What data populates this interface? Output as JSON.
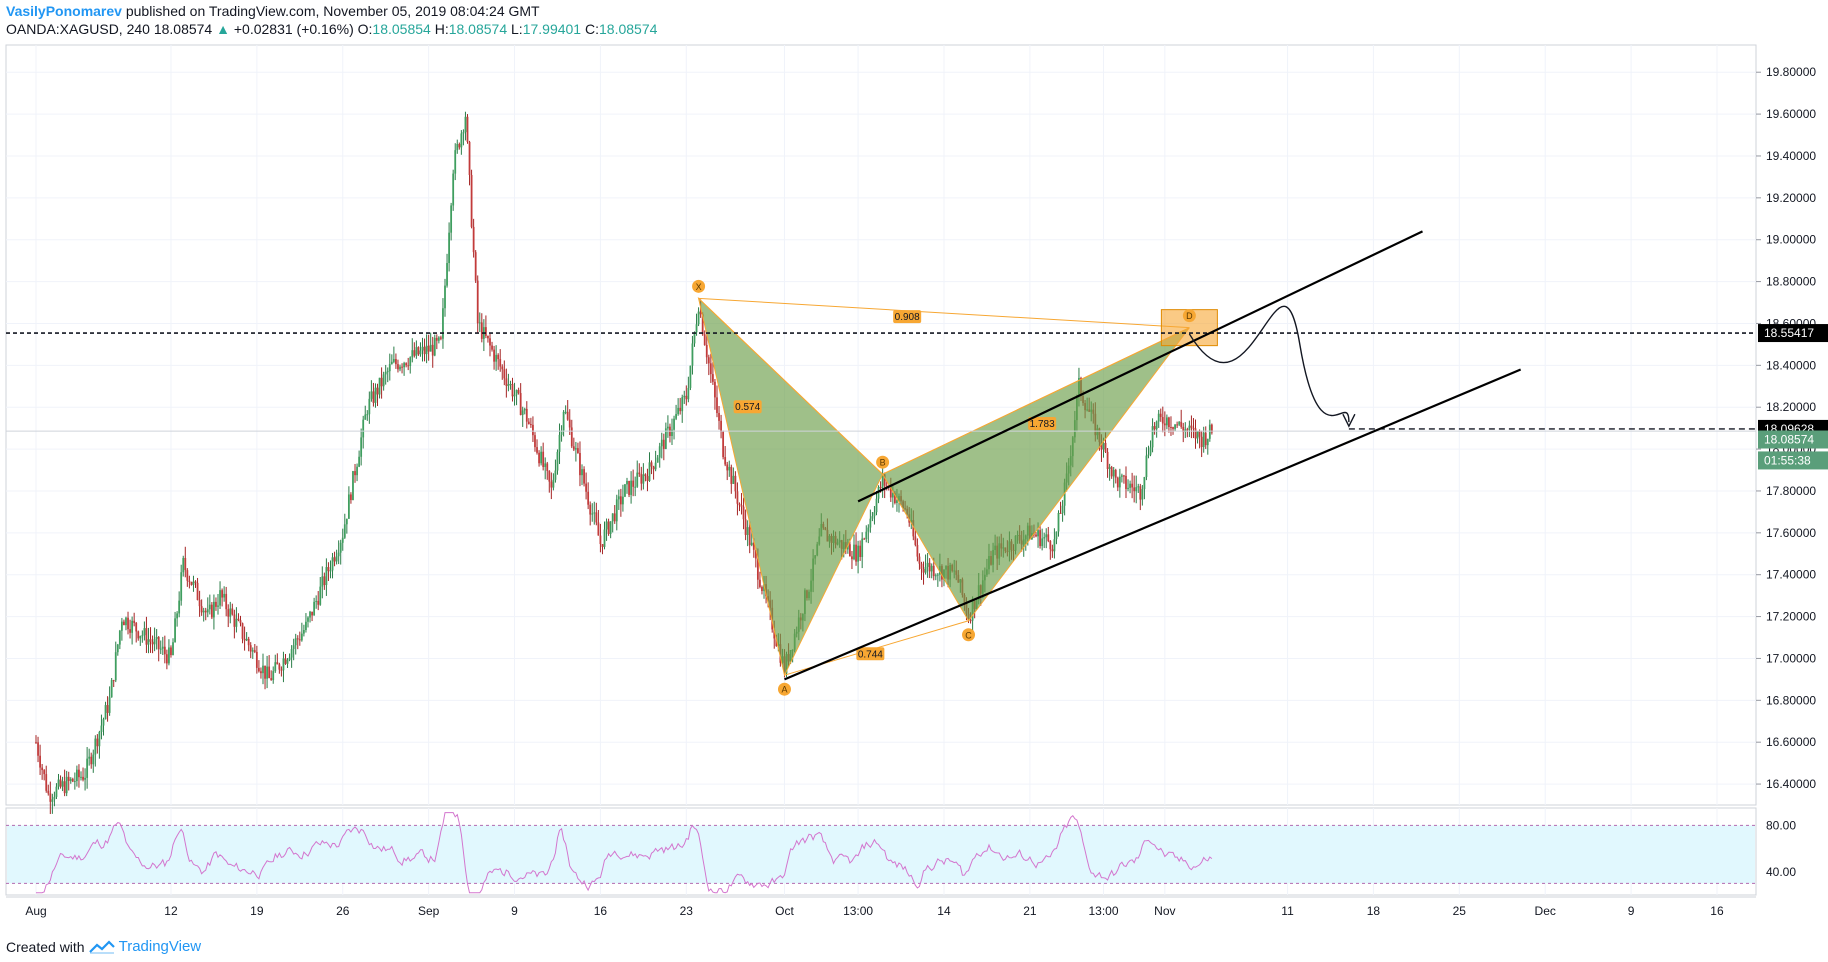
{
  "header": {
    "author": "VasilyPonomarev",
    "published": "published on TradingView.com, November 05, 2019 08:04:24 GMT",
    "symbol": "OANDA:XAGUSD, 240",
    "last": "18.08574",
    "change": "+0.02831 (+0.16%)",
    "ohlc": [
      {
        "label": "O:",
        "value": "18.05854"
      },
      {
        "label": "H:",
        "value": "18.08574"
      },
      {
        "label": "L:",
        "value": "17.99401"
      },
      {
        "label": "C:",
        "value": "18.08574"
      }
    ]
  },
  "footer": {
    "created_with": "Created with",
    "brand": "TradingView"
  },
  "colors": {
    "bull": "#26a69a",
    "bear": "#ef5350",
    "pattern_fill": "#6b9e49",
    "pattern_line": "#f7a733",
    "rsi": "#d376ce",
    "rsi_band": "#e1f8fe"
  },
  "chart_data": {
    "type": "candlestick",
    "ylim": [
      16.3,
      19.93
    ],
    "y_ticks": [
      "19.80000",
      "19.60000",
      "19.40000",
      "19.20000",
      "19.00000",
      "18.80000",
      "18.60000",
      "18.40000",
      "18.20000",
      "18.00000",
      "17.80000",
      "17.60000",
      "17.40000",
      "17.20000",
      "17.00000",
      "16.80000",
      "16.60000",
      "16.40000"
    ],
    "x_labels": [
      "Aug",
      "12",
      "19",
      "26",
      "Sep",
      "9",
      "16",
      "23",
      "Oct",
      "13:00",
      "14",
      "21",
      "13:00",
      "Nov",
      "11",
      "18",
      "25",
      "Dec",
      "9",
      "16"
    ],
    "price_path": [
      [
        "Aug 1",
        16.6
      ],
      [
        "Aug 2",
        16.35
      ],
      [
        "Aug 5",
        16.45
      ],
      [
        "Aug 7",
        16.8
      ],
      [
        "Aug 8",
        17.2
      ],
      [
        "Aug 12",
        17.0
      ],
      [
        "Aug 13",
        17.45
      ],
      [
        "Aug 15",
        17.2
      ],
      [
        "Aug 16",
        17.3
      ],
      [
        "Aug 20",
        16.9
      ],
      [
        "Aug 23",
        17.15
      ],
      [
        "Aug 26",
        17.6
      ],
      [
        "Aug 28",
        18.2
      ],
      [
        "Aug 30",
        18.4
      ],
      [
        "Sep 3",
        18.5
      ],
      [
        "Sep 4",
        19.35
      ],
      [
        "Sep 5",
        19.6
      ],
      [
        "Sep 6",
        18.6
      ],
      [
        "Sep 10",
        18.15
      ],
      [
        "Sep 12",
        17.8
      ],
      [
        "Sep 13",
        18.2
      ],
      [
        "Sep 16",
        17.55
      ],
      [
        "Sep 18",
        17.8
      ],
      [
        "Sep 20",
        17.9
      ],
      [
        "Sep 23",
        18.25
      ],
      [
        "Sep 24",
        18.7
      ],
      [
        "Sep 26",
        18.0
      ],
      [
        "Sep 28",
        17.6
      ],
      [
        "Oct 1",
        16.95
      ],
      [
        "Oct 3",
        17.35
      ],
      [
        "Oct 4",
        17.6
      ],
      [
        "Oct 7",
        17.5
      ],
      [
        "Oct 9",
        17.85
      ],
      [
        "Oct 11",
        17.7
      ],
      [
        "Oct 12",
        17.45
      ],
      [
        "Oct 15",
        17.4
      ],
      [
        "Oct 16",
        17.2
      ],
      [
        "Oct 18",
        17.5
      ],
      [
        "Oct 21",
        17.6
      ],
      [
        "Oct 23",
        17.55
      ],
      [
        "Oct 24",
        17.85
      ],
      [
        "Oct 25",
        18.3
      ],
      [
        "Oct 28",
        17.85
      ],
      [
        "Oct 30",
        17.8
      ],
      [
        "Oct 31",
        18.1
      ],
      [
        "Nov 1",
        18.15
      ],
      [
        "Nov 4",
        18.05
      ],
      [
        "Nov 5",
        18.09
      ]
    ],
    "levels": [
      {
        "name": "resistance",
        "value": 18.55417,
        "label": "18.55417"
      },
      {
        "name": "target",
        "value": 18.09628,
        "label": "18.09628"
      },
      {
        "name": "last-price",
        "value": 18.08574,
        "label": "18.08574"
      }
    ],
    "countdown": "01:55:38",
    "harmonic_pattern": {
      "points": [
        {
          "label": "X",
          "date": "Sep 24",
          "price": 18.72
        },
        {
          "label": "A",
          "date": "Oct 1",
          "price": 16.92
        },
        {
          "label": "B",
          "date": "Oct 9",
          "price": 17.88
        },
        {
          "label": "C",
          "date": "Oct 16",
          "price": 17.18
        },
        {
          "label": "D",
          "date": "Nov 3",
          "price": 18.58
        }
      ],
      "ratios": [
        {
          "value": "0.574",
          "between": "XB",
          "at": [
            "Sep 28",
            18.2
          ]
        },
        {
          "value": "0.744",
          "between": "AC",
          "at": [
            "Oct 8",
            17.02
          ]
        },
        {
          "value": "1.783",
          "between": "BD",
          "at": [
            "Oct 22",
            18.12
          ]
        },
        {
          "value": "0.908",
          "between": "XD",
          "at": [
            "Oct 11",
            18.63
          ]
        }
      ]
    },
    "channel": {
      "lower": [
        [
          "Oct 1",
          16.9
        ],
        [
          "Nov 30",
          18.38
        ]
      ],
      "upper": [
        [
          "Oct 7",
          17.75
        ],
        [
          "Nov 22",
          19.04
        ]
      ]
    },
    "projection_arrow": [
      [
        "Nov 3",
        18.55
      ],
      [
        "Nov 8",
        18.35
      ],
      [
        "Nov 12",
        18.5
      ],
      [
        "Nov 16",
        18.1
      ]
    ],
    "rsi": {
      "ylim": [
        20,
        95
      ],
      "levels": [
        80,
        30
      ],
      "ticks": [
        "80.00",
        "40.00"
      ]
    }
  }
}
